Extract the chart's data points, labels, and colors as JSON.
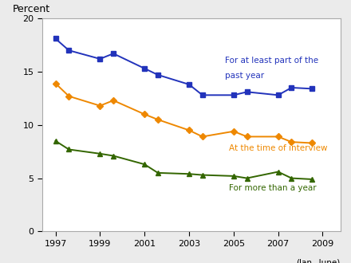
{
  "years": [
    1997,
    1997.6,
    1999,
    1999.6,
    2001,
    2001.6,
    2003,
    2003.6,
    2005,
    2005.6,
    2007,
    2007.6,
    2008.5
  ],
  "blue_label_1": "For at least part of the",
  "blue_label_2": "past year",
  "orange_label": "At the time of interview",
  "green_label": "For more than a year",
  "blue": [
    18.1,
    17.0,
    16.2,
    16.7,
    15.3,
    14.7,
    13.8,
    12.8,
    12.8,
    13.1,
    12.8,
    13.5,
    13.4
  ],
  "orange": [
    13.9,
    12.7,
    11.8,
    12.3,
    11.0,
    10.5,
    9.5,
    8.9,
    9.4,
    8.9,
    8.9,
    8.4,
    8.3
  ],
  "green": [
    8.5,
    7.7,
    7.3,
    7.1,
    6.3,
    5.5,
    5.4,
    5.3,
    5.2,
    5.0,
    5.6,
    5.0,
    4.9
  ],
  "blue_color": "#2233bb",
  "orange_color": "#ee8800",
  "green_color": "#336600",
  "ylabel": "Percent",
  "ylim": [
    0,
    20
  ],
  "yticks": [
    0,
    5,
    10,
    15,
    20
  ],
  "xticks": [
    1997,
    1999,
    2001,
    2003,
    2005,
    2007,
    2009
  ],
  "xlim": [
    1996.4,
    2009.8
  ],
  "xlabel_sub": "(Jan.–June)",
  "bg_color": "#ebebeb",
  "plot_bg": "#ffffff",
  "border_color": "#aaaaaa"
}
